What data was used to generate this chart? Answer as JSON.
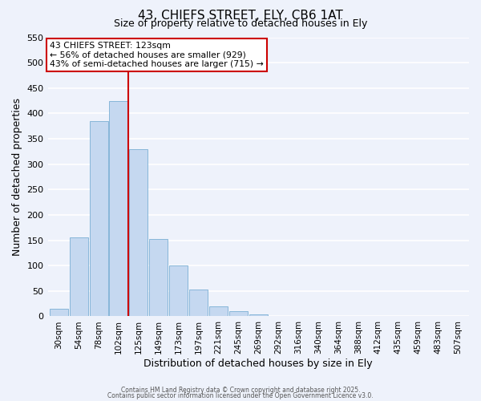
{
  "title": "43, CHIEFS STREET, ELY, CB6 1AT",
  "subtitle": "Size of property relative to detached houses in Ely",
  "xlabel": "Distribution of detached houses by size in Ely",
  "ylabel": "Number of detached properties",
  "bar_labels": [
    "30sqm",
    "54sqm",
    "78sqm",
    "102sqm",
    "125sqm",
    "149sqm",
    "173sqm",
    "197sqm",
    "221sqm",
    "245sqm",
    "269sqm",
    "292sqm",
    "316sqm",
    "340sqm",
    "364sqm",
    "388sqm",
    "412sqm",
    "435sqm",
    "459sqm",
    "483sqm",
    "507sqm"
  ],
  "bar_values": [
    15,
    155,
    385,
    425,
    330,
    152,
    100,
    53,
    20,
    10,
    4,
    1,
    1,
    0,
    0,
    0,
    0,
    0,
    0,
    0,
    0
  ],
  "bar_color": "#c5d8f0",
  "bar_edge_color": "#7aafd4",
  "vline_color": "#cc0000",
  "ylim": [
    0,
    550
  ],
  "yticks": [
    0,
    50,
    100,
    150,
    200,
    250,
    300,
    350,
    400,
    450,
    500,
    550
  ],
  "annotation_title": "43 CHIEFS STREET: 123sqm",
  "annotation_line1": "← 56% of detached houses are smaller (929)",
  "annotation_line2": "43% of semi-detached houses are larger (715) →",
  "annotation_box_color": "#ffffff",
  "annotation_box_edge": "#cc0000",
  "bg_color": "#eef2fb",
  "grid_color": "#ffffff",
  "footer1": "Contains HM Land Registry data © Crown copyright and database right 2025.",
  "footer2": "Contains public sector information licensed under the Open Government Licence v3.0."
}
